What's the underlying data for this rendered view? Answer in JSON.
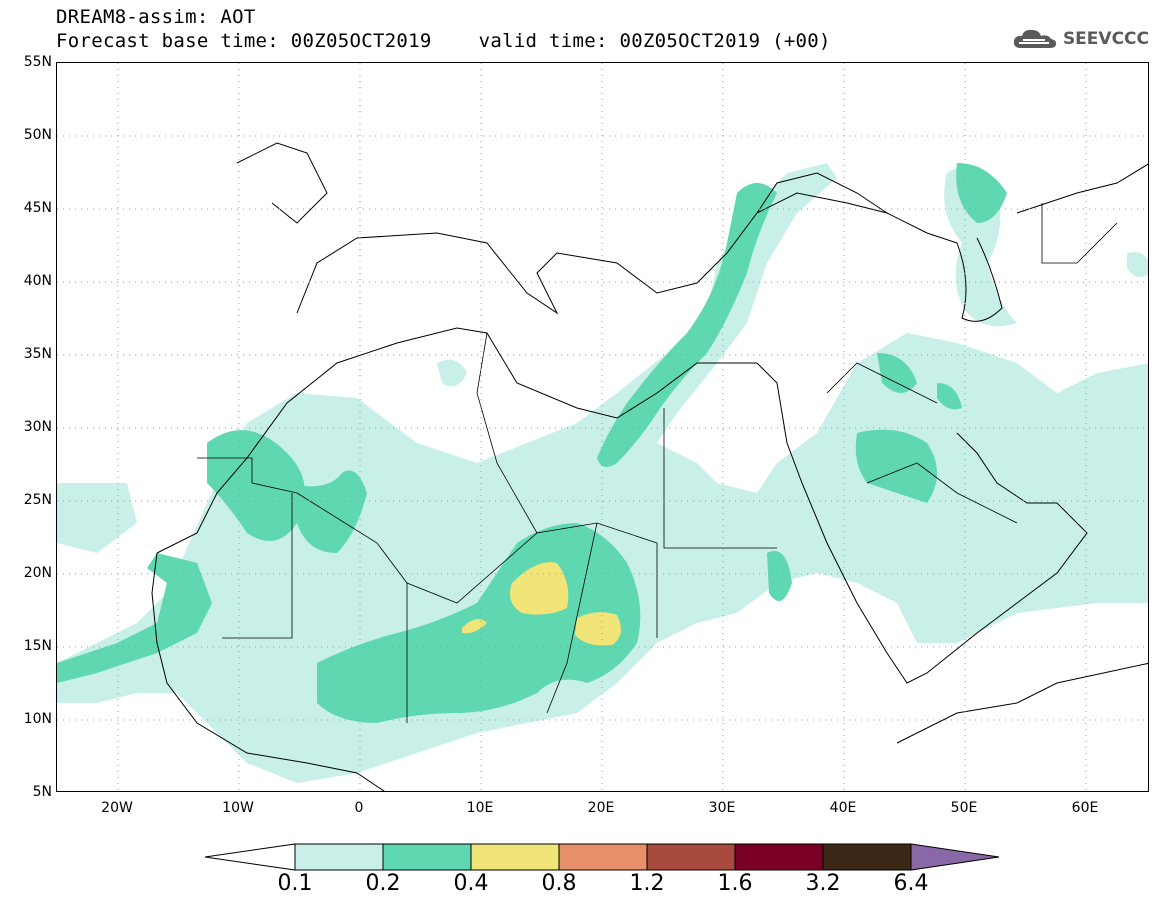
{
  "header": {
    "title_line1": "DREAM8-assim: AOT",
    "title_line2": "Forecast base time: 00Z05OCT2019    valid time: 00Z05OCT2019 (+00)"
  },
  "logo": {
    "text": "SEEVCCC",
    "icon": "cloud-icon"
  },
  "map": {
    "lat_labels": [
      "55N",
      "50N",
      "45N",
      "40N",
      "35N",
      "30N",
      "25N",
      "20N",
      "15N",
      "10N",
      "5N"
    ],
    "lon_labels": [
      "20W",
      "10W",
      "0",
      "10E",
      "20E",
      "30E",
      "40E",
      "50E",
      "60E"
    ]
  },
  "colorbar": {
    "colors": [
      "#c8f0e8",
      "#5fd7b1",
      "#f1e478",
      "#e8906a",
      "#a84a3e",
      "#7a0026",
      "#3b2817",
      "#8a68a8"
    ],
    "labels": [
      "0.1",
      "0.2",
      "0.4",
      "0.8",
      "1.2",
      "1.6",
      "3.2",
      "6.4"
    ]
  }
}
